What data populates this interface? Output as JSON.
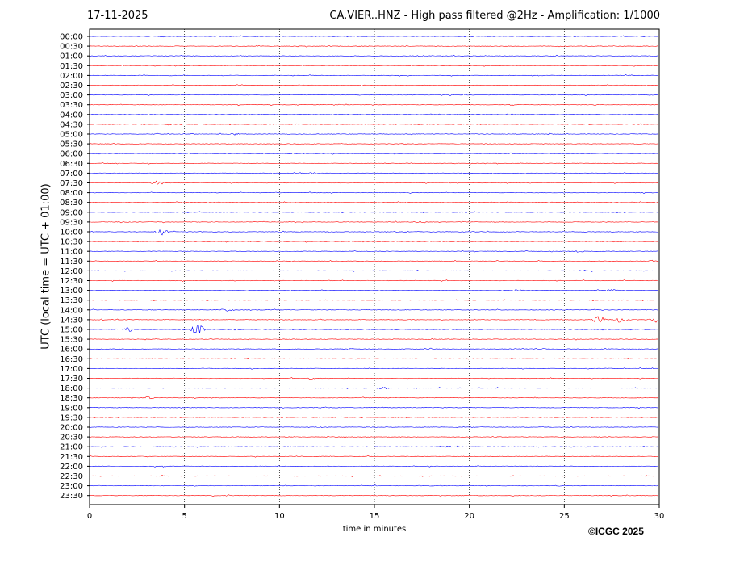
{
  "date": "17-11-2025",
  "title": "CA.VIER..HNZ - High pass filtered @2Hz - Amplification: 1/1000",
  "copyright": "©ICGC 2025",
  "colors": {
    "odd_trace": "#ff0000",
    "even_trace": "#0000ff",
    "grid": "#000000"
  },
  "chart_data": {
    "type": "line",
    "title": "CA.VIER..HNZ - High pass filtered @2Hz - Amplification: 1/1000",
    "xlabel": "time in minutes",
    "ylabel": "UTC (local time = UTC + 01:00)",
    "xlim": [
      0,
      30
    ],
    "xticks": [
      0,
      5,
      10,
      15,
      20,
      25,
      30
    ],
    "vertical_gridlines": [
      5,
      10,
      15,
      20,
      25
    ],
    "rows": [
      "00:00",
      "00:30",
      "01:00",
      "01:30",
      "02:00",
      "02:30",
      "03:00",
      "03:30",
      "04:00",
      "04:30",
      "05:00",
      "05:30",
      "06:00",
      "06:30",
      "07:00",
      "07:30",
      "08:00",
      "08:30",
      "09:00",
      "09:30",
      "10:00",
      "10:30",
      "11:00",
      "11:30",
      "12:00",
      "12:30",
      "13:00",
      "13:30",
      "14:00",
      "14:30",
      "15:00",
      "15:30",
      "16:00",
      "16:30",
      "17:00",
      "17:30",
      "18:00",
      "18:30",
      "19:00",
      "19:30",
      "20:00",
      "20:30",
      "21:00",
      "21:30",
      "22:00",
      "22:30",
      "23:00",
      "23:30"
    ],
    "trace_color_cycle": [
      "blue",
      "red"
    ],
    "events": [
      {
        "row": "01:00",
        "minute": 17.4,
        "amplitude": 0.2
      },
      {
        "row": "05:00",
        "minute": 7.6,
        "amplitude": 0.35
      },
      {
        "row": "06:00",
        "minute": 11.1,
        "amplitude": 0.25
      },
      {
        "row": "07:00",
        "minute": 11.8,
        "amplitude": 0.25
      },
      {
        "row": "07:30",
        "minute": 3.6,
        "amplitude": 0.6
      },
      {
        "row": "09:30",
        "minute": 17.3,
        "amplitude": 0.3
      },
      {
        "row": "10:00",
        "minute": 3.8,
        "amplitude": 0.9
      },
      {
        "row": "11:00",
        "minute": 25.8,
        "amplitude": 0.3
      },
      {
        "row": "11:30",
        "minute": 29.6,
        "amplitude": 0.35
      },
      {
        "row": "13:00",
        "minute": 22.6,
        "amplitude": 0.35
      },
      {
        "row": "13:00",
        "minute": 27.5,
        "amplitude": 0.3
      },
      {
        "row": "14:00",
        "minute": 7.3,
        "amplitude": 0.35
      },
      {
        "row": "14:30",
        "minute": 26.8,
        "amplitude": 1.2
      },
      {
        "row": "14:30",
        "minute": 28.0,
        "amplitude": 1.0
      },
      {
        "row": "14:30",
        "minute": 29.8,
        "amplitude": 0.7
      },
      {
        "row": "15:00",
        "minute": 2.0,
        "amplitude": 0.8
      },
      {
        "row": "15:00",
        "minute": 5.7,
        "amplitude": 1.6
      },
      {
        "row": "16:00",
        "minute": 17.9,
        "amplitude": 0.3
      },
      {
        "row": "16:00",
        "minute": 13.6,
        "amplitude": 0.3
      },
      {
        "row": "17:30",
        "minute": 11.6,
        "amplitude": 0.35
      },
      {
        "row": "18:00",
        "minute": 15.5,
        "amplitude": 0.4
      },
      {
        "row": "18:30",
        "minute": 3.1,
        "amplitude": 0.45
      },
      {
        "row": "19:00",
        "minute": 12.3,
        "amplitude": 0.3
      },
      {
        "row": "21:00",
        "minute": 18.9,
        "amplitude": 0.25
      }
    ]
  }
}
